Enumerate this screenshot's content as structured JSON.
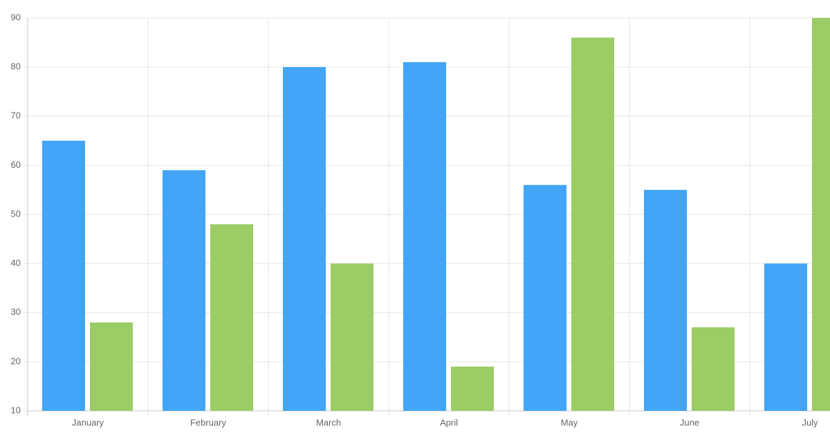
{
  "chart_data": {
    "type": "bar",
    "categories": [
      "January",
      "February",
      "March",
      "April",
      "May",
      "June",
      "July"
    ],
    "series": [
      {
        "color": "#42a5f5",
        "values": [
          65,
          59,
          80,
          81,
          56,
          55,
          40
        ]
      },
      {
        "color": "#9ccc65",
        "values": [
          28,
          48,
          40,
          19,
          86,
          27,
          90
        ]
      }
    ],
    "ylim": [
      10,
      90
    ],
    "yticks": [
      10,
      20,
      30,
      40,
      50,
      60,
      70,
      80,
      90
    ],
    "grid": true
  }
}
